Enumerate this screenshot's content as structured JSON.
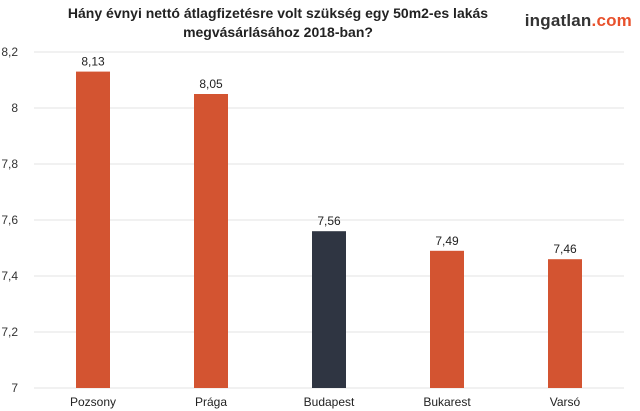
{
  "header": {
    "title_line1": "Hány évnyi nettó átlagfizetésre volt szükség egy 50m2-es lakás",
    "title_line2": "megvásárlásához 2018-ban?"
  },
  "logo": {
    "part1": "ingatlan",
    "part2": ".com"
  },
  "colors": {
    "bar_default": "#d35431",
    "bar_highlight": "#2f3542",
    "grid": "#e3e3e3",
    "brand_accent": "#e8512c"
  },
  "chart_data": {
    "type": "bar",
    "title": "Hány évnyi nettó átlagfizetésre volt szükség egy 50m2-es lakás megvásárlásához 2018-ban?",
    "categories": [
      "Pozsony",
      "Prága",
      "Budapest",
      "Bukarest",
      "Varsó"
    ],
    "values": [
      8.13,
      8.05,
      7.56,
      7.49,
      7.46
    ],
    "value_labels": [
      "8,13",
      "8,05",
      "7,56",
      "7,49",
      "7,46"
    ],
    "highlight": [
      "Budapest"
    ],
    "ylim": [
      7,
      8.2
    ],
    "yticks": [
      7,
      7.2,
      7.4,
      7.6,
      7.8,
      8,
      8.2
    ],
    "ytick_labels": [
      "7",
      "7,2",
      "7,4",
      "7,6",
      "7,8",
      "8",
      "8,2"
    ],
    "grid": true,
    "xlabel": "",
    "ylabel": ""
  }
}
